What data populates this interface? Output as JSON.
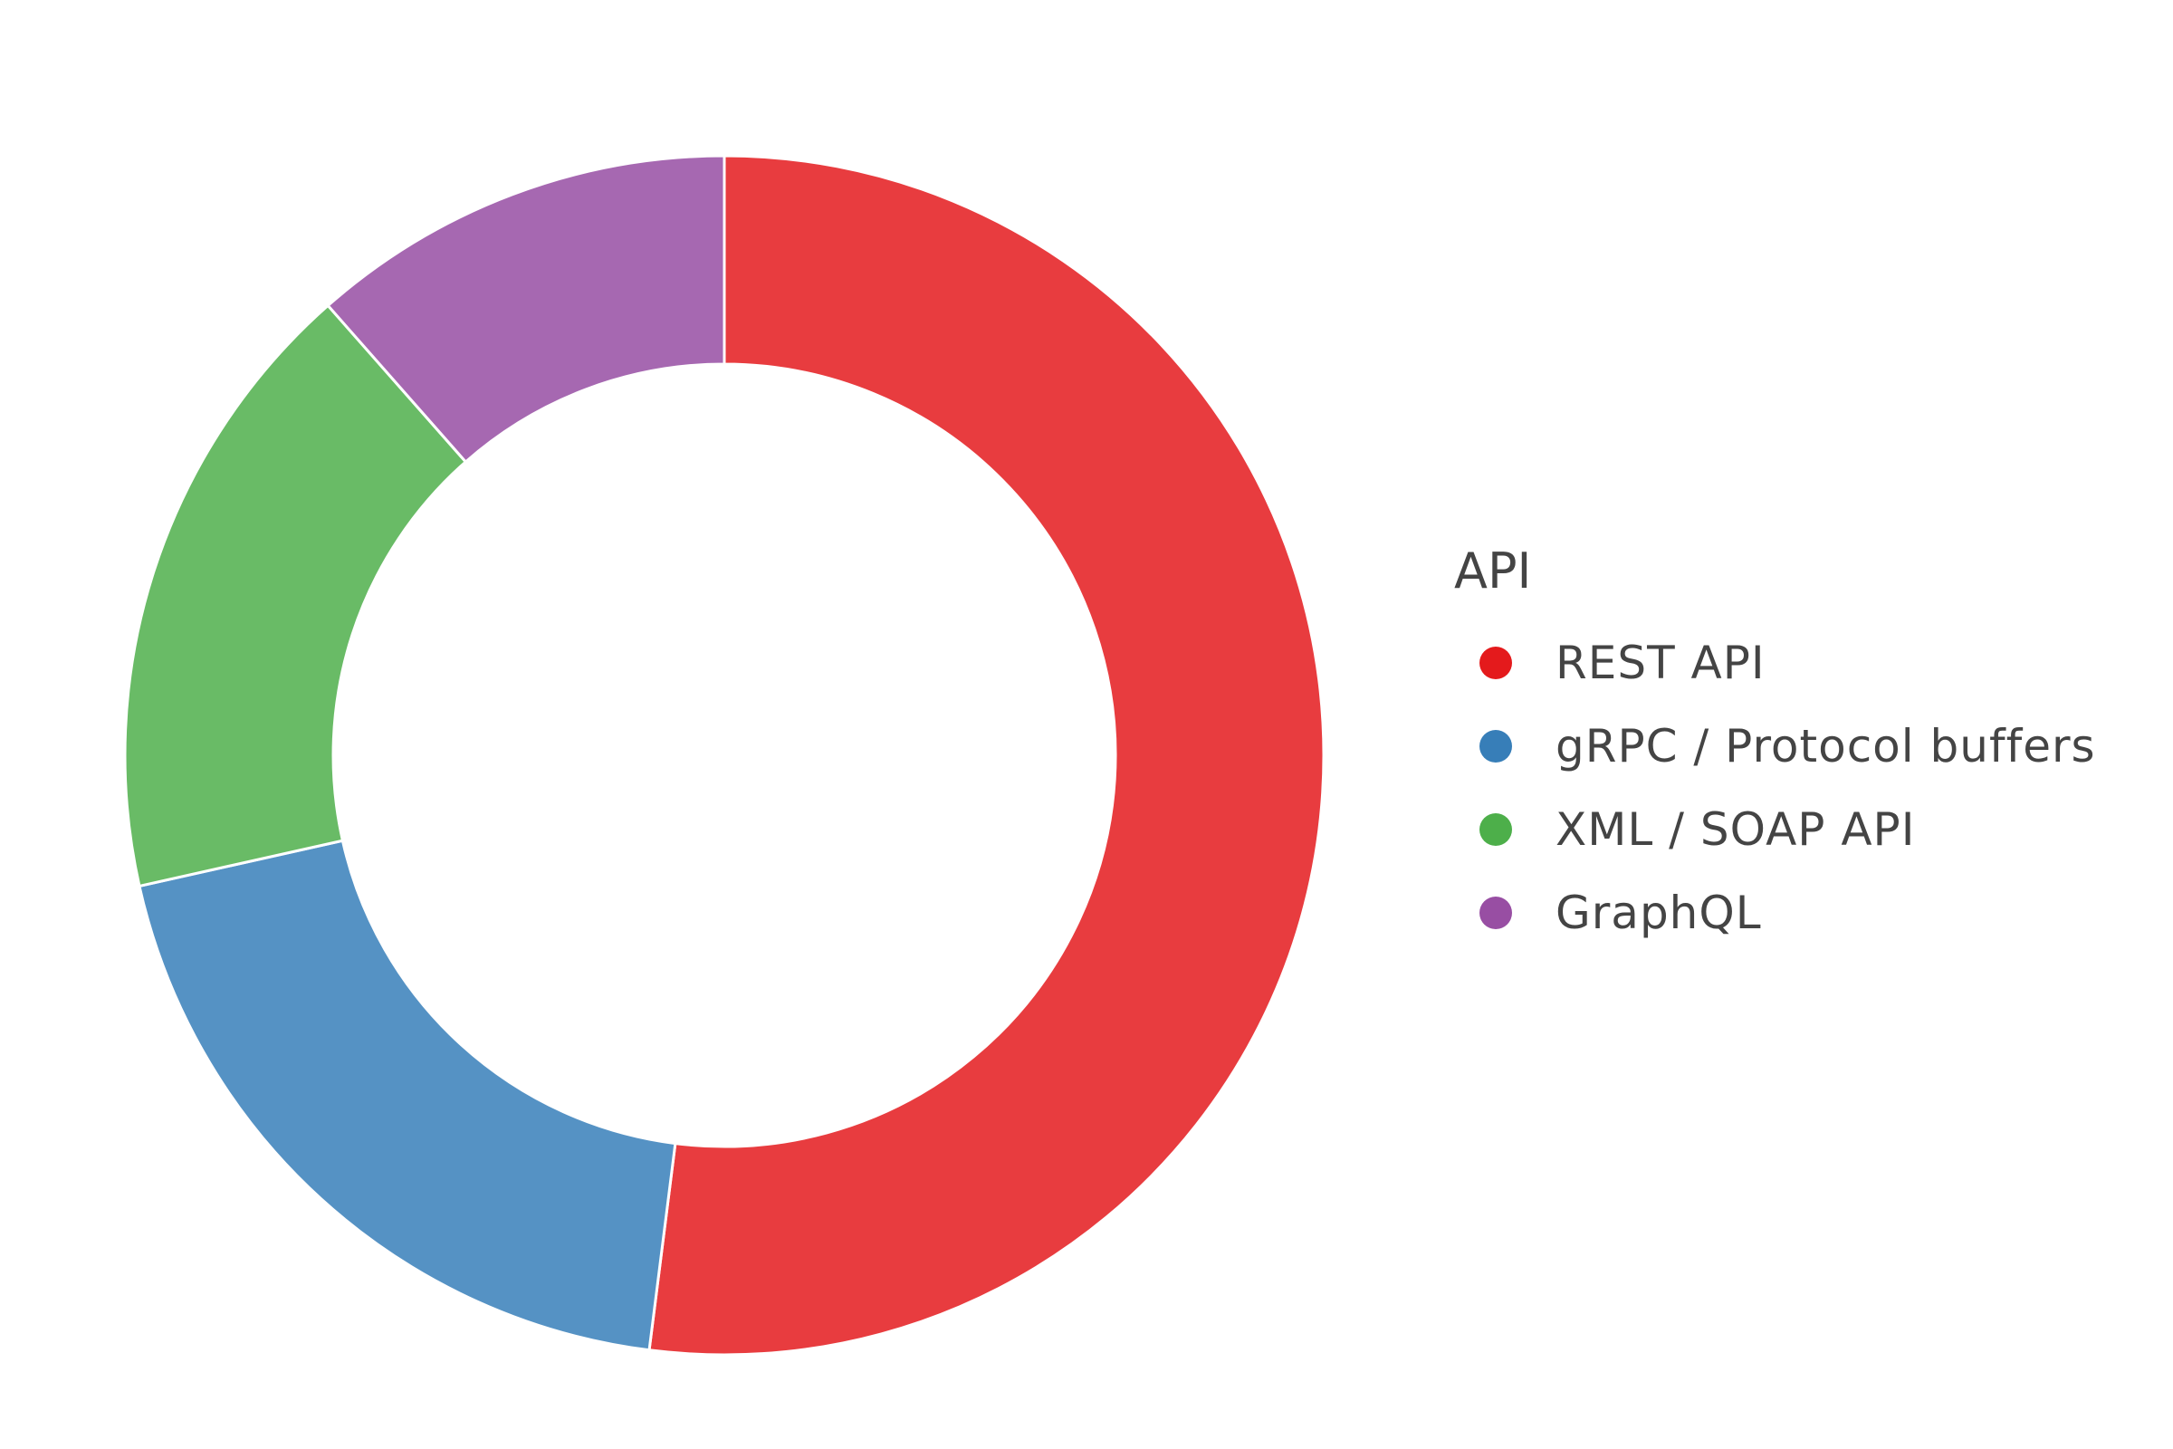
{
  "chart_data": {
    "type": "pie",
    "donut": true,
    "legend_title": "API",
    "legend_position": "right",
    "categories": [
      "REST API",
      "gRPC / Protocol buffers",
      "XML / SOAP API",
      "GraphQL"
    ],
    "values": [
      52,
      19.5,
      17,
      11.5
    ],
    "unit": "percent",
    "colors": [
      "#e83c3f",
      "#5592c4",
      "#69bb66",
      "#a668b1"
    ],
    "legend_colors": [
      "#e41a1c",
      "#377eb8",
      "#4daf4a",
      "#984ea3"
    ]
  }
}
